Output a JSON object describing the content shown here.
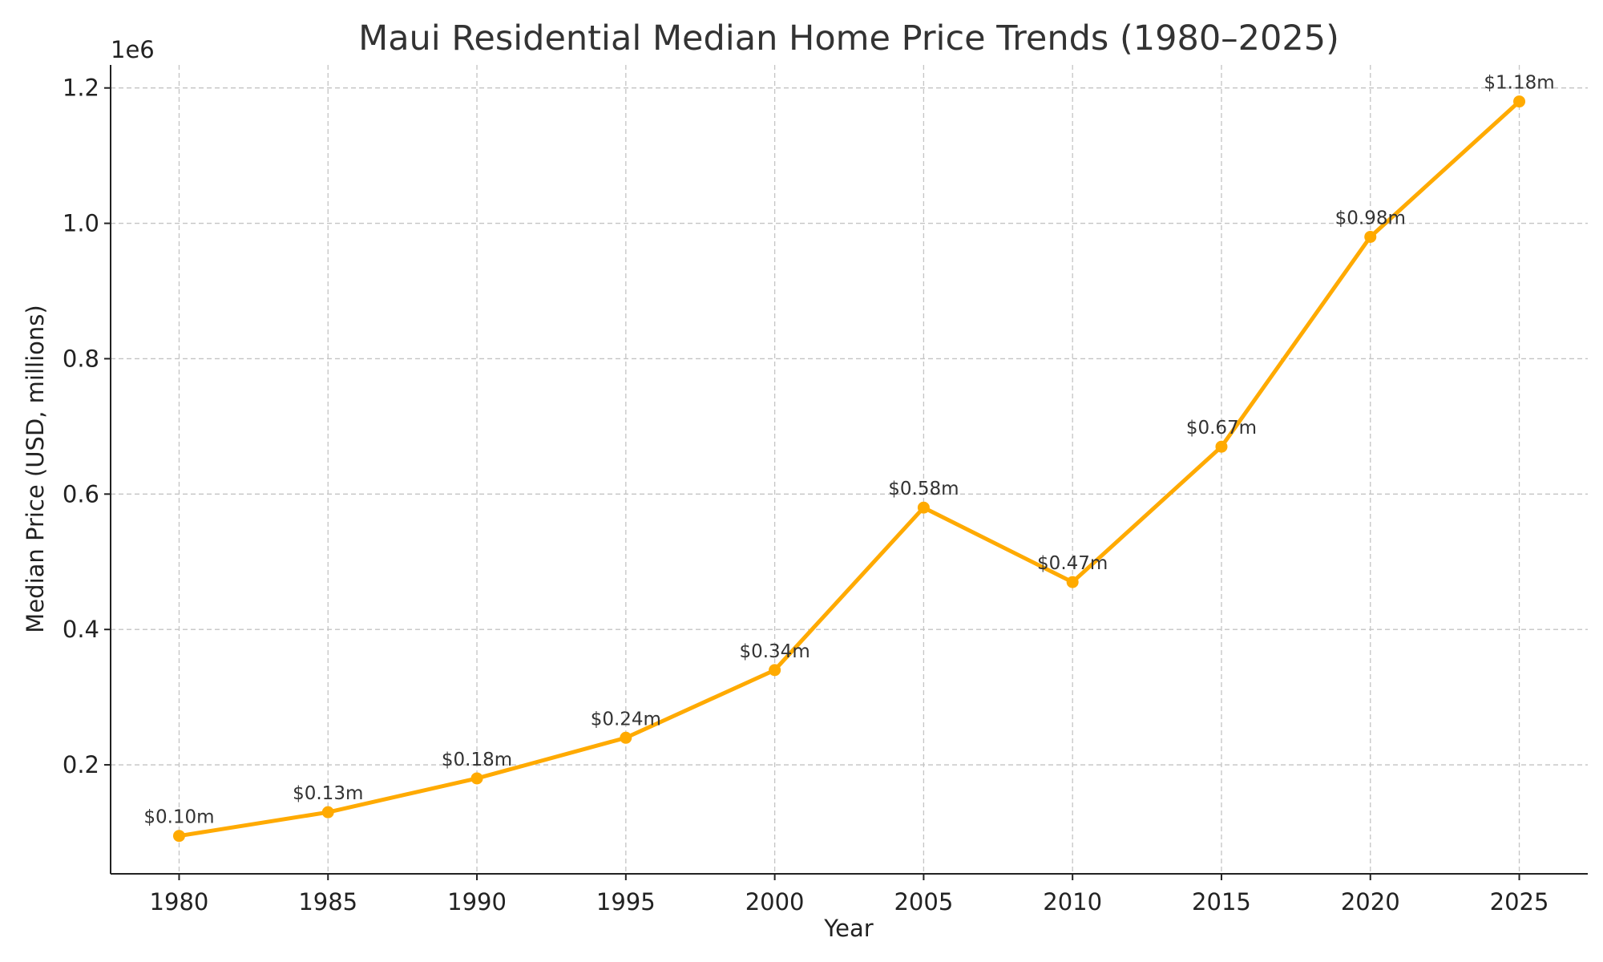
{
  "chart_data": {
    "type": "line",
    "title": "Maui Residential Median Home Price Trends (1980–2025)",
    "xlabel": "Year",
    "ylabel": "Median Price (USD, millions)",
    "y_offset_label": "1e6",
    "x": [
      1980,
      1985,
      1990,
      1995,
      2000,
      2005,
      2010,
      2015,
      2020,
      2025
    ],
    "series": [
      {
        "values": [
          95000,
          130000,
          180000,
          240000,
          340000,
          580000,
          470000,
          670000,
          980000,
          1180000
        ],
        "labels": [
          "$0.10m",
          "$0.13m",
          "$0.18m",
          "$0.24m",
          "$0.34m",
          "$0.58m",
          "$0.47m",
          "$0.67m",
          "$0.98m",
          "$1.18m"
        ],
        "color": "#FFAA00",
        "marker": "circle"
      }
    ],
    "xticks": [
      1980,
      1985,
      1990,
      1995,
      2000,
      2005,
      2010,
      2015,
      2020,
      2025
    ],
    "yticks": [
      0.2,
      0.4,
      0.6,
      0.8,
      1.0,
      1.2
    ],
    "ytick_labels": [
      "0.2",
      "0.4",
      "0.6",
      "0.8",
      "1.0",
      "1.2"
    ],
    "xlim": [
      1977.7,
      2027.3
    ],
    "ylim": [
      39000,
      1234000
    ],
    "grid": true
  }
}
